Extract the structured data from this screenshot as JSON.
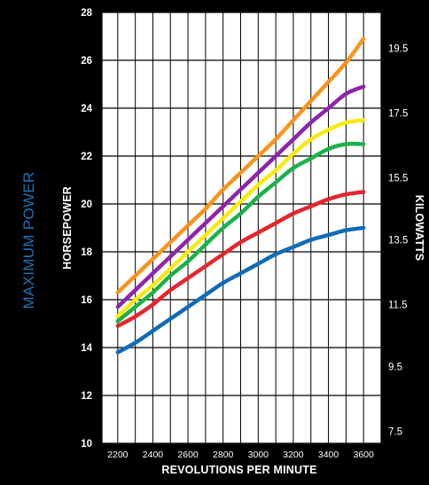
{
  "chart_data": {
    "type": "line",
    "title": "MAXIMUM POWER",
    "xlabel": "REVOLUTIONS PER MINUTE",
    "ylabel": "HORSEPOWER",
    "y2label": "KILOWATTS",
    "x": [
      2200,
      2300,
      2400,
      2500,
      2600,
      2700,
      2800,
      2900,
      3000,
      3100,
      3200,
      3300,
      3400,
      3500,
      3600
    ],
    "x_ticks": [
      "2200",
      "2400",
      "2600",
      "2800",
      "3000",
      "3200",
      "3400",
      "3600"
    ],
    "y_ticks": [
      "10",
      "12",
      "14",
      "16",
      "18",
      "20",
      "22",
      "24",
      "26",
      "28"
    ],
    "y2_ticks": [
      "7.5",
      "9.5",
      "11.5",
      "13.5",
      "15.5",
      "17.5",
      "19.5"
    ],
    "xlim": [
      2110,
      3700
    ],
    "ylim": [
      10,
      28
    ],
    "y2_tick_hp_positions": [
      10.5,
      13.2,
      15.8,
      18.5,
      21.1,
      23.8,
      26.5
    ],
    "grid": true,
    "title_color": "#1d72b8",
    "series": [
      {
        "color": "#f7941d",
        "values": [
          16.3,
          17.0,
          17.7,
          18.4,
          19.1,
          19.8,
          20.6,
          21.3,
          22.0,
          22.7,
          23.5,
          24.3,
          25.1,
          25.9,
          26.9
        ]
      },
      {
        "color": "#8e24aa",
        "values": [
          15.7,
          16.4,
          17.1,
          17.8,
          18.5,
          19.2,
          19.9,
          20.6,
          21.3,
          22.0,
          22.7,
          23.4,
          24.0,
          24.6,
          24.9
        ]
      },
      {
        "color": "#f9ea0f",
        "values": [
          15.3,
          16.0,
          16.6,
          17.3,
          18.0,
          18.7,
          19.4,
          20.1,
          20.8,
          21.4,
          22.1,
          22.7,
          23.1,
          23.4,
          23.5
        ]
      },
      {
        "color": "#1db14b",
        "values": [
          15.1,
          15.7,
          16.3,
          17.0,
          17.6,
          18.3,
          19.0,
          19.6,
          20.3,
          20.9,
          21.5,
          21.9,
          22.3,
          22.5,
          22.5
        ]
      },
      {
        "color": "#e4252d",
        "values": [
          14.9,
          15.3,
          15.8,
          16.4,
          16.9,
          17.4,
          17.9,
          18.4,
          18.8,
          19.2,
          19.6,
          19.9,
          20.2,
          20.4,
          20.5
        ]
      },
      {
        "color": "#0f6cb6",
        "values": [
          13.8,
          14.2,
          14.7,
          15.2,
          15.7,
          16.2,
          16.7,
          17.1,
          17.5,
          17.9,
          18.2,
          18.5,
          18.7,
          18.9,
          19.0
        ]
      }
    ]
  }
}
